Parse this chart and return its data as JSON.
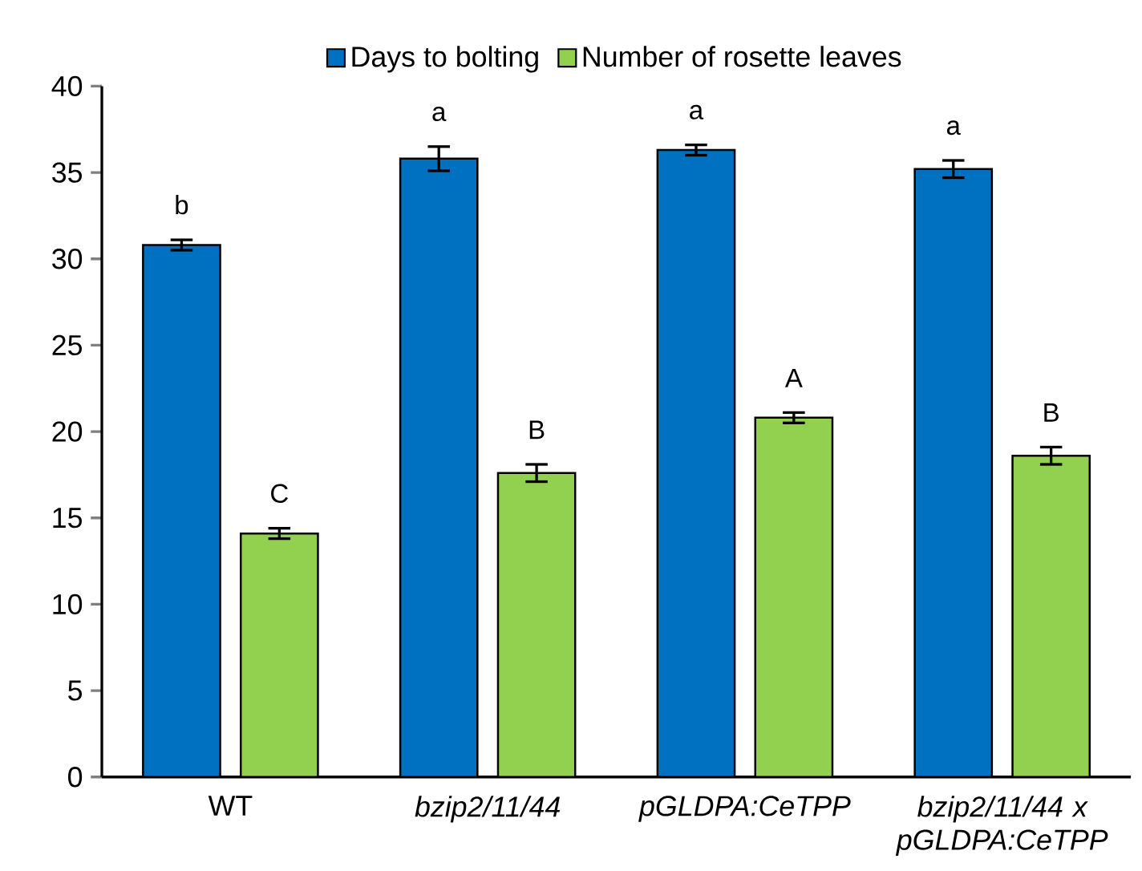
{
  "chart_data": {
    "type": "bar",
    "categories": [
      "WT",
      "*bzip2/11/44*",
      "*pGLDPA:CeTPP*",
      "*bzip2/11/44 x pGLDPA:CeTPP*"
    ],
    "series": [
      {
        "name": "Days to bolting",
        "color": "#0070c0",
        "values": [
          30.8,
          35.8,
          36.3,
          35.2
        ],
        "errors": [
          0.3,
          0.7,
          0.3,
          0.5
        ]
      },
      {
        "name": "Number of  rosette leaves",
        "color": "#92d050",
        "values": [
          14.1,
          17.6,
          20.8,
          18.6
        ],
        "errors": [
          0.3,
          0.5,
          0.3,
          0.5
        ]
      }
    ],
    "ylim": [
      0,
      40
    ],
    "yticks": [
      0,
      5,
      10,
      15,
      20,
      25,
      30,
      35,
      40
    ],
    "legend": "top",
    "grid": false,
    "annotations": [
      "b",
      "C",
      "a",
      "B",
      "a",
      "A",
      "a",
      "B"
    ]
  }
}
